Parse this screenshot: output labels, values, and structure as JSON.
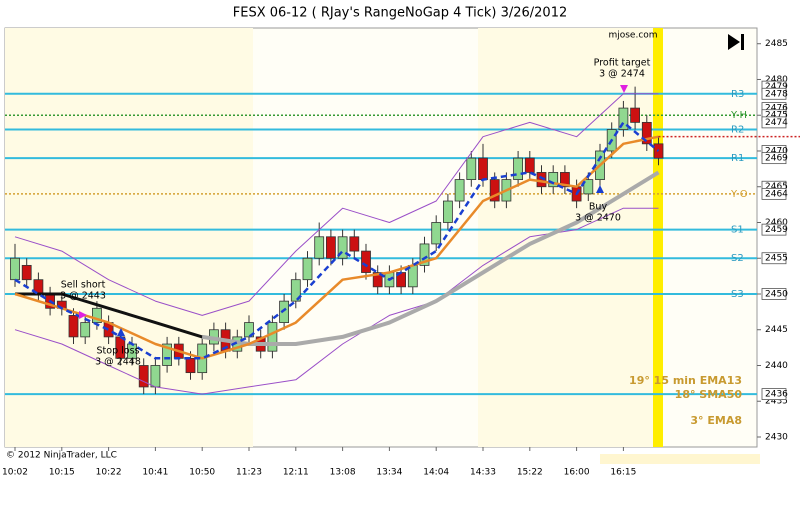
{
  "chart_data": {
    "type": "candlestick",
    "title": "FESX 06-12 ( RJay's RangeNoGap  4 Tick)  3/26/2012",
    "source": "mjose.com",
    "copyright": "© 2012 NinjaTrader, LLC",
    "categories": [
      "10:02",
      null,
      null,
      null,
      "10:15",
      null,
      null,
      null,
      "10:22",
      null,
      null,
      null,
      "10:41",
      null,
      null,
      null,
      "10:50",
      null,
      null,
      null,
      "11:23",
      null,
      null,
      null,
      "12:11",
      null,
      null,
      null,
      "13:08",
      null,
      null,
      null,
      "13:34",
      null,
      null,
      null,
      "14:04",
      null,
      null,
      null,
      "14:33",
      null,
      null,
      null,
      "15:22",
      null,
      null,
      null,
      "16:00",
      null,
      null,
      null,
      "16:15",
      null,
      null,
      null
    ],
    "open": [
      2452,
      2454,
      2452,
      2450,
      2449,
      2447,
      2444,
      2446,
      2446,
      2444,
      2441,
      2440,
      2437,
      2440,
      2443,
      2441,
      2439,
      2443,
      2445,
      2442,
      2444,
      2444,
      2442,
      2446,
      2449,
      2452,
      2455,
      2458,
      2455,
      2458,
      2456,
      2453,
      2451,
      2453,
      2451,
      2454,
      2457,
      2460,
      2463,
      2466,
      2469,
      2466,
      2463,
      2466,
      2469,
      2467,
      2465,
      2467,
      2465,
      2464,
      2466,
      2470,
      2473,
      2476,
      2474,
      2471
    ],
    "high": [
      2457,
      2455,
      2453,
      2451,
      2450,
      2448,
      2447,
      2449,
      2447,
      2445,
      2444,
      2441,
      2441,
      2444,
      2444,
      2442,
      2444,
      2446,
      2446,
      2445,
      2447,
      2445,
      2447,
      2450,
      2453,
      2456,
      2460,
      2459,
      2459,
      2459,
      2457,
      2454,
      2454,
      2454,
      2455,
      2458,
      2461,
      2464,
      2467,
      2470,
      2471,
      2467,
      2467,
      2470,
      2470,
      2468,
      2468,
      2468,
      2466,
      2467,
      2471,
      2474,
      2477,
      2479,
      2475,
      2472
    ],
    "low": [
      2451,
      2451,
      2449,
      2447,
      2447,
      2443,
      2443,
      2445,
      2443,
      2440,
      2440,
      2436,
      2436,
      2439,
      2440,
      2438,
      2438,
      2442,
      2441,
      2441,
      2443,
      2441,
      2441,
      2445,
      2448,
      2451,
      2454,
      2454,
      2454,
      2455,
      2452,
      2450,
      2450,
      2450,
      2450,
      2453,
      2456,
      2459,
      2462,
      2465,
      2465,
      2462,
      2462,
      2465,
      2466,
      2464,
      2464,
      2464,
      2462,
      2463,
      2465,
      2469,
      2472,
      2473,
      2470,
      2468
    ],
    "close": [
      2455,
      2452,
      2450,
      2448,
      2448,
      2444,
      2446,
      2448,
      2444,
      2441,
      2443,
      2437,
      2440,
      2443,
      2441,
      2439,
      2443,
      2445,
      2442,
      2444,
      2446,
      2442,
      2446,
      2449,
      2452,
      2455,
      2458,
      2455,
      2458,
      2456,
      2453,
      2451,
      2453,
      2451,
      2454,
      2457,
      2460,
      2463,
      2466,
      2469,
      2466,
      2463,
      2466,
      2469,
      2467,
      2465,
      2467,
      2465,
      2463,
      2466,
      2470,
      2473,
      2476,
      2474,
      2471,
      2469
    ],
    "up_color": "#90d890",
    "down_color": "#cc1111",
    "ylim": [
      2428.6,
      2487.2
    ],
    "yticks": [
      2430,
      2435,
      2440,
      2445,
      2450,
      2455,
      2460,
      2465,
      2470,
      2475,
      2480,
      2485
    ],
    "lines": [
      {
        "color": "#9a4fc8",
        "width": 1,
        "x": [
          0,
          4,
          8,
          12,
          16,
          20,
          24,
          28,
          32,
          36,
          40,
          44,
          48,
          52,
          55
        ],
        "values": [
          2458,
          2456,
          2452,
          2449,
          2447,
          2449,
          2456,
          2462,
          2460,
          2463,
          2472,
          2474,
          2472,
          2478,
          2478
        ]
      },
      {
        "color": "#9a4fc8",
        "width": 1,
        "x": [
          0,
          4,
          8,
          12,
          16,
          20,
          24,
          28,
          32,
          36,
          40,
          44,
          48,
          52,
          55
        ],
        "values": [
          2445,
          2443,
          2440,
          2437,
          2436,
          2437,
          2438,
          2443,
          2447,
          2449,
          2454,
          2458,
          2459,
          2462,
          2462
        ]
      },
      {
        "color": "#111111",
        "width": 3,
        "x": [
          0,
          4,
          8,
          12,
          16,
          20,
          24,
          28,
          32,
          36,
          40,
          44,
          48,
          52,
          55
        ],
        "values": [
          2450,
          2450,
          2448,
          2446,
          2444,
          null,
          null,
          null,
          null,
          null,
          null,
          null,
          null,
          null,
          null
        ]
      },
      {
        "name": "18° SMA50",
        "color": "#aaaaaa",
        "width": 4,
        "x": [
          0,
          4,
          8,
          12,
          16,
          20,
          24,
          28,
          32,
          36,
          40,
          44,
          48,
          52,
          55
        ],
        "values": [
          null,
          null,
          null,
          null,
          2444,
          2443,
          2443,
          2444,
          2446,
          2449,
          2453,
          2457,
          2460,
          2464,
          2467
        ]
      },
      {
        "name": "19° 15 min EMA13",
        "color": "#e88a2a",
        "width": 2.5,
        "x": [
          0,
          4,
          8,
          12,
          16,
          20,
          24,
          28,
          32,
          36,
          40,
          44,
          48,
          52,
          55
        ],
        "values": [
          2450,
          2448,
          2446,
          2443,
          2441,
          2443,
          2446,
          2452,
          2453,
          2455,
          2463,
          2466,
          2465,
          2471,
          2472
        ]
      },
      {
        "name": "3° EMA8",
        "color": "#1a3fd0",
        "width": 2.5,
        "dashed": true,
        "x": [
          0,
          4,
          8,
          12,
          16,
          20,
          24,
          28,
          32,
          36,
          40,
          44,
          48,
          52,
          55
        ],
        "values": [
          2452,
          2448,
          2445,
          2441,
          2441,
          2444,
          2449,
          2456,
          2452,
          2456,
          2466,
          2467,
          2464,
          2474,
          2470
        ]
      }
    ],
    "levels": [
      {
        "label": "R3",
        "value": 2478,
        "color": "#33bbdd"
      },
      {
        "label": "Y-H",
        "value": 2475,
        "color": "#339933",
        "dotted": true
      },
      {
        "label": "R2",
        "value": 2473,
        "color": "#33bbdd"
      },
      {
        "value": 2472,
        "color": "#cc2222",
        "dotted": true,
        "from": 55
      },
      {
        "label": "R1",
        "value": 2469,
        "color": "#33bbdd"
      },
      {
        "label": "Y-O",
        "value": 2464,
        "color": "#d4a030",
        "dotted": true
      },
      {
        "label": "S1",
        "value": 2459,
        "color": "#33bbdd"
      },
      {
        "label": "S2",
        "value": 2455,
        "color": "#33bbdd"
      },
      {
        "label": "S3",
        "value": 2450,
        "color": "#33bbdd"
      },
      {
        "value": 2436,
        "color": "#33bbdd"
      }
    ],
    "price_markers": [
      2479,
      2478,
      2476,
      2475,
      2474,
      2470,
      2469,
      2465,
      2464,
      2459,
      2455,
      2450,
      2436
    ],
    "annotations": [
      {
        "lines": [
          "Sell short",
          "3 @ 2443"
        ]
      },
      {
        "lines": [
          "Stop loss",
          "3 @ 2448"
        ]
      },
      {
        "lines": [
          "Profit target",
          "3 @ 2474"
        ]
      },
      {
        "lines": [
          "Buy",
          "3 @ 2470"
        ]
      }
    ]
  }
}
